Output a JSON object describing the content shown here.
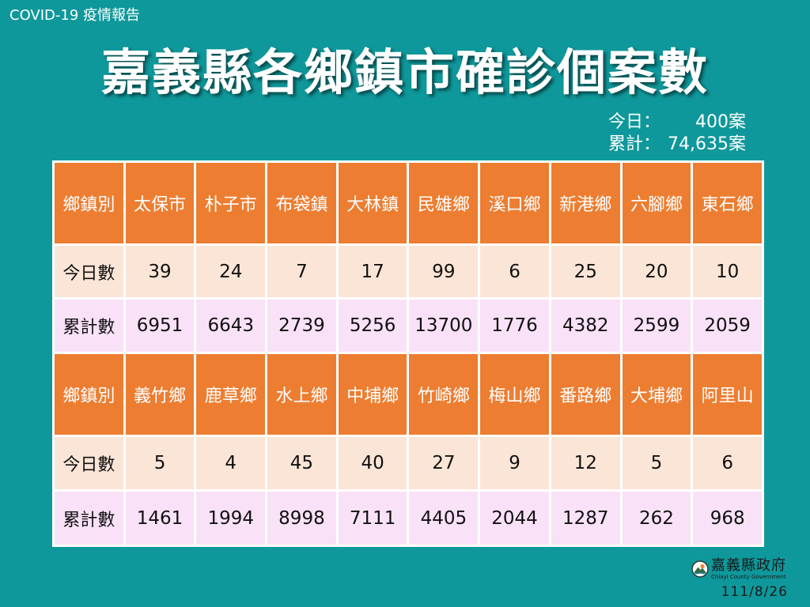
{
  "header": {
    "report_label": "COVID-19 疫情報告"
  },
  "summary": {
    "today_label": "今日：",
    "today_value": "400案",
    "total_label": "累計：",
    "total_value": "74,635案"
  },
  "chart_data": {
    "type": "table",
    "title": "嘉義縣各鄉鎮市確診個案數",
    "row_labels": {
      "district": "鄉鎮別",
      "today": "今日數",
      "total": "累計數"
    },
    "groups": [
      {
        "districts": [
          "太保市",
          "朴子市",
          "布袋鎮",
          "大林鎮",
          "民雄鄉",
          "溪口鄉",
          "新港鄉",
          "六腳鄉",
          "東石鄉"
        ],
        "today": [
          39,
          24,
          7,
          17,
          99,
          6,
          25,
          20,
          10
        ],
        "total": [
          6951,
          6643,
          2739,
          5256,
          13700,
          1776,
          4382,
          2599,
          2059
        ]
      },
      {
        "districts": [
          "義竹鄉",
          "鹿草鄉",
          "水上鄉",
          "中埔鄉",
          "竹崎鄉",
          "梅山鄉",
          "番路鄉",
          "大埔鄉",
          "阿里山"
        ],
        "today": [
          5,
          4,
          45,
          40,
          27,
          9,
          12,
          5,
          6
        ],
        "total": [
          1461,
          1994,
          8998,
          7111,
          4405,
          2044,
          1287,
          262,
          968
        ]
      }
    ]
  },
  "footer": {
    "org_name": "嘉義縣政府",
    "org_name_en": "Chiayi County Government",
    "date": "111/8/26"
  },
  "icons": {
    "logo": "county-logo-icon"
  },
  "colors": {
    "background": "#0f989b",
    "header_row": "#ed7d31",
    "today_row": "#fbe5d6",
    "total_row": "#f9e1f7"
  }
}
